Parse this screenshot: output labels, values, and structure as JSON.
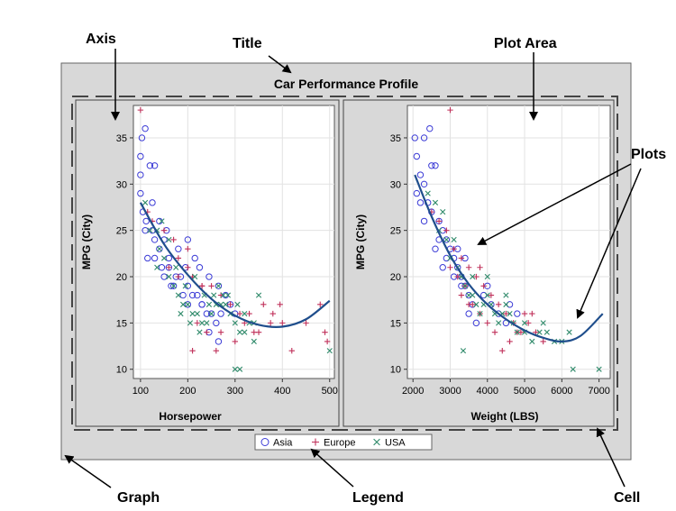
{
  "callouts": {
    "axis": "Axis",
    "title": "Title",
    "plot_area": "Plot Area",
    "plots": "Plots",
    "graph": "Graph",
    "legend": "Legend",
    "cell": "Cell"
  },
  "colors": {
    "graph_background": "#d8d8d8",
    "plot_background": "#ffffff",
    "grid": "#e2e2e2",
    "asia": "#3b3bd6",
    "europe": "#c0305a",
    "usa": "#2f8a6a",
    "fit_line": "#1f4e8c"
  },
  "legend": [
    {
      "name": "Asia",
      "marker": "circle"
    },
    {
      "name": "Europe",
      "marker": "plus"
    },
    {
      "name": "USA",
      "marker": "x"
    }
  ],
  "chart_data": [
    {
      "type": "scatter",
      "title": "Car Performance Profile",
      "xlabel": "Horsepower",
      "ylabel": "MPG (City)",
      "xticks": [
        100,
        200,
        300,
        400,
        500
      ],
      "yticks": [
        10,
        15,
        20,
        25,
        30,
        35
      ],
      "xlim": [
        85,
        510
      ],
      "ylim": [
        9,
        38.5
      ],
      "grid": true,
      "series": [
        {
          "name": "Asia",
          "marker": "circle",
          "points": [
            [
              103,
              35
            ],
            [
              110,
              36
            ],
            [
              120,
              32
            ],
            [
              130,
              32
            ],
            [
              100,
              33
            ],
            [
              100,
              31
            ],
            [
              100,
              29
            ],
            [
              105,
              27
            ],
            [
              112,
              26
            ],
            [
              110,
              25
            ],
            [
              125,
              25
            ],
            [
              130,
              24
            ],
            [
              140,
              23
            ],
            [
              150,
              24
            ],
            [
              160,
              22
            ],
            [
              115,
              22
            ],
            [
              130,
              22
            ],
            [
              145,
              21
            ],
            [
              160,
              21
            ],
            [
              175,
              20
            ],
            [
              150,
              20
            ],
            [
              165,
              19
            ],
            [
              185,
              20
            ],
            [
              200,
              19
            ],
            [
              210,
              18
            ],
            [
              220,
              18
            ],
            [
              190,
              18
            ],
            [
              200,
              17
            ],
            [
              230,
              17
            ],
            [
              240,
              16
            ],
            [
              250,
              16
            ],
            [
              260,
              15
            ],
            [
              225,
              21
            ],
            [
              245,
              20
            ],
            [
              265,
              19
            ],
            [
              280,
              18
            ],
            [
              290,
              17
            ],
            [
              300,
              16
            ],
            [
              200,
              24
            ],
            [
              180,
              23
            ],
            [
              215,
              22
            ],
            [
              245,
              14
            ],
            [
              265,
              13
            ],
            [
              230,
              17
            ],
            [
              270,
              16
            ],
            [
              155,
              25
            ],
            [
              125,
              28
            ],
            [
              140,
              26
            ],
            [
              170,
              19
            ],
            [
              195,
              21
            ]
          ]
        },
        {
          "name": "Europe",
          "marker": "plus",
          "points": [
            [
              100,
              38
            ],
            [
              115,
              27
            ],
            [
              125,
              26
            ],
            [
              150,
              25
            ],
            [
              170,
              24
            ],
            [
              180,
              22
            ],
            [
              200,
              21
            ],
            [
              210,
              20
            ],
            [
              230,
              19
            ],
            [
              250,
              19
            ],
            [
              270,
              18
            ],
            [
              290,
              17
            ],
            [
              310,
              16
            ],
            [
              320,
              15
            ],
            [
              340,
              14
            ],
            [
              350,
              14
            ],
            [
              400,
              15
            ],
            [
              420,
              12
            ],
            [
              450,
              15
            ],
            [
              480,
              17
            ],
            [
              490,
              14
            ],
            [
              495,
              13
            ],
            [
              360,
              17
            ],
            [
              380,
              16
            ],
            [
              395,
              17
            ],
            [
              300,
              13
            ],
            [
              270,
              14
            ],
            [
              240,
              14
            ],
            [
              220,
              15
            ],
            [
              210,
              12
            ],
            [
              260,
              12
            ],
            [
              230,
              19
            ],
            [
              200,
              23
            ],
            [
              180,
              20
            ],
            [
              160,
              21
            ],
            [
              330,
              16
            ],
            [
              375,
              15
            ]
          ]
        },
        {
          "name": "USA",
          "marker": "x",
          "points": [
            [
              110,
              28
            ],
            [
              120,
              25
            ],
            [
              135,
              25
            ],
            [
              140,
              23
            ],
            [
              150,
              22
            ],
            [
              160,
              20
            ],
            [
              170,
              19
            ],
            [
              180,
              18
            ],
            [
              190,
              17
            ],
            [
              200,
              17
            ],
            [
              210,
              16
            ],
            [
              220,
              16
            ],
            [
              230,
              15
            ],
            [
              240,
              15
            ],
            [
              250,
              16
            ],
            [
              260,
              17
            ],
            [
              270,
              17
            ],
            [
              280,
              17
            ],
            [
              290,
              16
            ],
            [
              300,
              15
            ],
            [
              310,
              14
            ],
            [
              320,
              14
            ],
            [
              330,
              15
            ],
            [
              340,
              15
            ],
            [
              350,
              18
            ],
            [
              300,
              10
            ],
            [
              310,
              10
            ],
            [
              500,
              12
            ],
            [
              175,
              21
            ],
            [
              195,
              19
            ],
            [
              215,
              20
            ],
            [
              235,
              18
            ],
            [
              255,
              18
            ],
            [
              275,
              18
            ],
            [
              320,
              16
            ],
            [
              340,
              13
            ],
            [
              160,
              24
            ],
            [
              145,
              26
            ],
            [
              185,
              16
            ],
            [
              205,
              15
            ],
            [
              225,
              14
            ],
            [
              245,
              17
            ],
            [
              265,
              19
            ],
            [
              285,
              18
            ],
            [
              305,
              17
            ],
            [
              135,
              21
            ]
          ]
        }
      ],
      "fit_line": [
        [
          100,
          28
        ],
        [
          150,
          23.5
        ],
        [
          200,
          20.2
        ],
        [
          250,
          17.6
        ],
        [
          300,
          15.8
        ],
        [
          350,
          14.8
        ],
        [
          400,
          14.6
        ],
        [
          450,
          15.4
        ],
        [
          500,
          17.4
        ]
      ]
    },
    {
      "type": "scatter",
      "title": "",
      "xlabel": "Weight (LBS)",
      "ylabel": "MPG (City)",
      "xticks": [
        2000,
        3000,
        4000,
        5000,
        6000,
        7000
      ],
      "yticks": [
        10,
        15,
        20,
        25,
        30,
        35
      ],
      "xlim": [
        1850,
        7300
      ],
      "ylim": [
        9,
        38.5
      ],
      "grid": true,
      "series": [
        {
          "name": "Asia",
          "marker": "circle",
          "points": [
            [
              2050,
              35
            ],
            [
              2100,
              33
            ],
            [
              2300,
              35
            ],
            [
              2450,
              36
            ],
            [
              2200,
              31
            ],
            [
              2300,
              30
            ],
            [
              2500,
              32
            ],
            [
              2600,
              32
            ],
            [
              2400,
              28
            ],
            [
              2500,
              27
            ],
            [
              2100,
              29
            ],
            [
              2200,
              28
            ],
            [
              2700,
              26
            ],
            [
              2800,
              25
            ],
            [
              2900,
              24
            ],
            [
              3000,
              23
            ],
            [
              3100,
              22
            ],
            [
              3200,
              21
            ],
            [
              3300,
              20
            ],
            [
              3400,
              19
            ],
            [
              3500,
              18
            ],
            [
              3600,
              17
            ],
            [
              2700,
              24
            ],
            [
              2900,
              22
            ],
            [
              3100,
              20
            ],
            [
              3300,
              19
            ],
            [
              3500,
              16
            ],
            [
              3700,
              15
            ],
            [
              3900,
              18
            ],
            [
              4100,
              17
            ],
            [
              4300,
              16
            ],
            [
              4500,
              15
            ],
            [
              2300,
              26
            ],
            [
              2600,
              23
            ],
            [
              2800,
              21
            ],
            [
              3200,
              23
            ],
            [
              3400,
              22
            ],
            [
              4000,
              19
            ],
            [
              4600,
              17
            ],
            [
              4800,
              16
            ]
          ]
        },
        {
          "name": "Europe",
          "marker": "plus",
          "points": [
            [
              3000,
              38
            ],
            [
              2500,
              27
            ],
            [
              2700,
              26
            ],
            [
              2900,
              25
            ],
            [
              3100,
              23
            ],
            [
              3300,
              22
            ],
            [
              3500,
              21
            ],
            [
              3700,
              20
            ],
            [
              3900,
              19
            ],
            [
              4100,
              18
            ],
            [
              4300,
              17
            ],
            [
              4500,
              16
            ],
            [
              4700,
              15
            ],
            [
              4900,
              14
            ],
            [
              5100,
              15
            ],
            [
              5300,
              14
            ],
            [
              5500,
              13
            ],
            [
              3600,
              17
            ],
            [
              3800,
              16
            ],
            [
              4000,
              15
            ],
            [
              4200,
              14
            ],
            [
              4400,
              12
            ],
            [
              4600,
              13
            ],
            [
              4800,
              14
            ],
            [
              3300,
              18
            ],
            [
              3500,
              17
            ],
            [
              3200,
              20
            ],
            [
              3400,
              19
            ],
            [
              5000,
              16
            ],
            [
              5200,
              16
            ],
            [
              3800,
              21
            ],
            [
              3000,
              21
            ]
          ]
        },
        {
          "name": "USA",
          "marker": "x",
          "points": [
            [
              2400,
              29
            ],
            [
              2600,
              28
            ],
            [
              2700,
              25
            ],
            [
              2900,
              24
            ],
            [
              3000,
              22
            ],
            [
              3200,
              21
            ],
            [
              3300,
              20
            ],
            [
              3400,
              19
            ],
            [
              3500,
              18
            ],
            [
              3600,
              18
            ],
            [
              3700,
              17
            ],
            [
              3800,
              16
            ],
            [
              3900,
              17
            ],
            [
              4000,
              18
            ],
            [
              4100,
              17
            ],
            [
              4200,
              16
            ],
            [
              4300,
              15
            ],
            [
              4400,
              16
            ],
            [
              4500,
              17
            ],
            [
              4600,
              16
            ],
            [
              4700,
              15
            ],
            [
              4800,
              14
            ],
            [
              5000,
              14
            ],
            [
              5200,
              13
            ],
            [
              5400,
              14
            ],
            [
              5600,
              14
            ],
            [
              5800,
              13
            ],
            [
              6000,
              13
            ],
            [
              6300,
              10
            ],
            [
              7000,
              10
            ],
            [
              3350,
              12
            ],
            [
              2800,
              27
            ],
            [
              3100,
              24
            ],
            [
              3600,
              20
            ],
            [
              4000,
              20
            ],
            [
              4500,
              18
            ],
            [
              5000,
              15
            ],
            [
              5500,
              15
            ],
            [
              6200,
              14
            ]
          ]
        }
      ],
      "fit_line": [
        [
          2050,
          31
        ],
        [
          2500,
          26.5
        ],
        [
          3000,
          22.3
        ],
        [
          3500,
          19.2
        ],
        [
          4000,
          17.0
        ],
        [
          4500,
          15.4
        ],
        [
          5000,
          14.2
        ],
        [
          5500,
          13.4
        ],
        [
          6000,
          13.0
        ],
        [
          6500,
          13.6
        ],
        [
          7100,
          16
        ]
      ]
    }
  ]
}
